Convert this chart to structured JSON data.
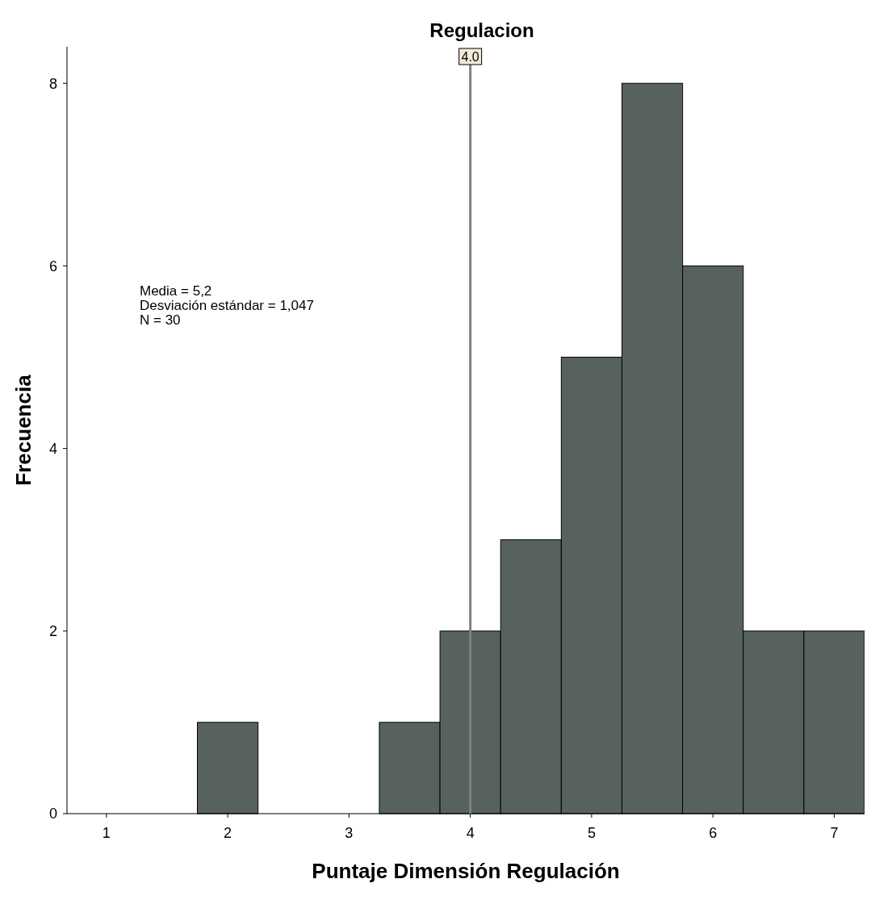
{
  "chart_data": {
    "type": "histogram",
    "title": "Regulacion",
    "xlabel": "Puntaje Dimensión Regulación",
    "ylabel": "Frecuencia",
    "bins": [
      1.75,
      2.25,
      2.75,
      3.25,
      3.75,
      4.25,
      4.75,
      5.25,
      5.75,
      6.25,
      6.75,
      7.25
    ],
    "values": [
      1,
      0,
      0,
      1,
      2,
      3,
      5,
      8,
      6,
      2,
      2
    ],
    "color": "#58625c",
    "xlim": [
      0.675,
      7.25
    ],
    "xticks": [
      1,
      2,
      3,
      4,
      5,
      6,
      7
    ],
    "ylim": [
      0,
      8.4
    ],
    "yticks": [
      0,
      2,
      4,
      6,
      8
    ],
    "grid": false,
    "ref_lines": [
      {
        "axis": "x",
        "value": 4,
        "label": "4.0",
        "color": "#808080"
      }
    ],
    "annotations": [
      "Media = 5,2",
      "Desviación estándar = 1,047",
      "N = 30"
    ]
  }
}
